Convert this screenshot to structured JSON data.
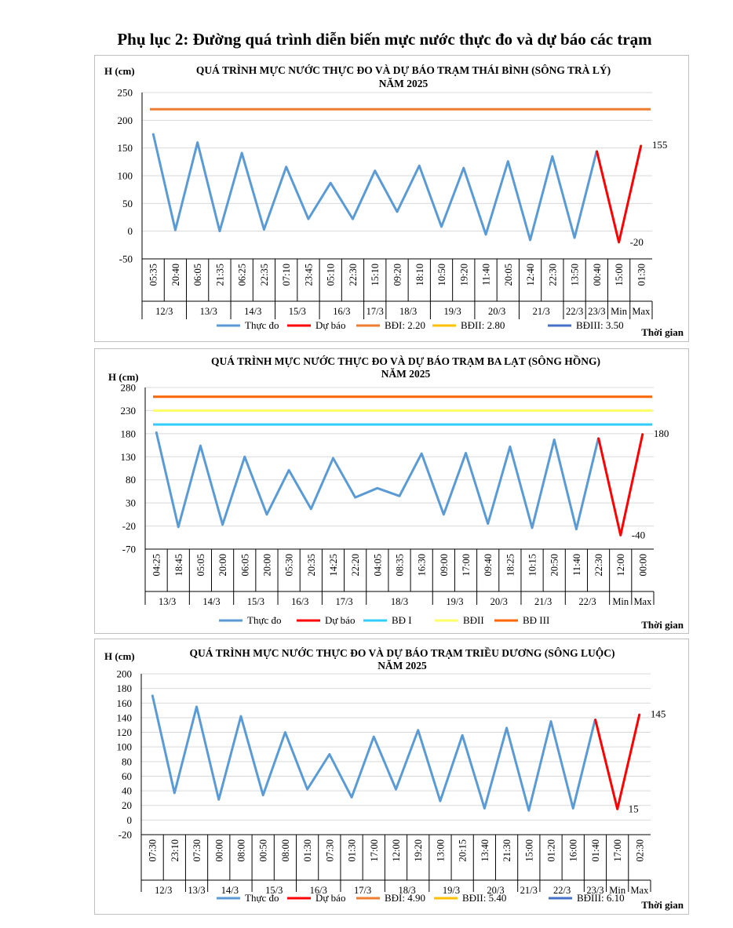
{
  "page": {
    "title": "Phụ lục 2: Đường quá trình diễn biến mực nước thực đo và dự báo các trạm"
  },
  "chart_data": [
    {
      "type": "line",
      "title": "QUÁ TRÌNH MỰC NƯỚC THỰC ĐO VÀ DỰ BÁO TRẠM THÁI BÌNH (SÔNG TRÀ LÝ)",
      "subtitle": "NĂM 2025",
      "ylabel": "H (cm)",
      "xlabel": "Thời gian",
      "ylim": [
        -50,
        250
      ],
      "yticks": [
        250,
        200,
        150,
        100,
        50,
        0,
        -50
      ],
      "categories": [
        "05:35",
        "20:40",
        "06:05",
        "21:35",
        "06:25",
        "22:35",
        "07:10",
        "23:45",
        "05:10",
        "22:30",
        "15:10",
        "09:20",
        "18:10",
        "10:50",
        "19:20",
        "11:40",
        "20:05",
        "12:40",
        "22:30",
        "13:50",
        "00:40",
        "15:00",
        "01:30"
      ],
      "date_groups": [
        {
          "label": "12/3",
          "span": 2
        },
        {
          "label": "13/3",
          "span": 2
        },
        {
          "label": "14/3",
          "span": 2
        },
        {
          "label": "15/3",
          "span": 2
        },
        {
          "label": "16/3",
          "span": 2
        },
        {
          "label": "17/3",
          "span": 1
        },
        {
          "label": "18/3",
          "span": 2
        },
        {
          "label": "19/3",
          "span": 2
        },
        {
          "label": "20/3",
          "span": 2
        },
        {
          "label": "21/3",
          "span": 2
        },
        {
          "label": "22/3",
          "span": 1
        },
        {
          "label": "23/3",
          "span": 1
        },
        {
          "label": "Min",
          "span": 1
        },
        {
          "label": "Max",
          "span": 1
        }
      ],
      "series": [
        {
          "name": "Thực đo",
          "color": "#5B9BD5",
          "values": [
            176,
            2,
            160,
            0,
            141,
            3,
            116,
            22,
            87,
            22,
            109,
            35,
            118,
            8,
            114,
            -6,
            126,
            -16,
            135,
            -12,
            145,
            null,
            null
          ]
        },
        {
          "name": "Dự báo",
          "color": "#FF0000",
          "values": [
            null,
            null,
            null,
            null,
            null,
            null,
            null,
            null,
            null,
            null,
            null,
            null,
            null,
            null,
            null,
            null,
            null,
            null,
            null,
            null,
            145,
            -20,
            155
          ]
        },
        {
          "name": "BĐI: 2.20",
          "color": "#ED7D31",
          "level": 220
        },
        {
          "name": "BĐII: 2.80",
          "color": "#FFC000",
          "level": null
        },
        {
          "name": "BĐIII: 3.50",
          "color": "#4472C4",
          "level": null
        }
      ],
      "annotations": [
        {
          "label": "155",
          "index": 22,
          "value": 155
        },
        {
          "label": "-20",
          "index": 21,
          "value": -20
        }
      ]
    },
    {
      "type": "line",
      "title": "QUÁ TRÌNH MỰC NƯỚC THỰC ĐO VÀ DỰ BÁO TRẠM BA LẠT (SÔNG HỒNG)",
      "subtitle": "NĂM 2025",
      "ylabel": "H (cm)",
      "xlabel": "Thời gian",
      "ylim": [
        -70,
        280
      ],
      "yticks": [
        280,
        230,
        180,
        130,
        80,
        30,
        -20,
        -70
      ],
      "categories": [
        "04:25",
        "18:45",
        "05:05",
        "20:00",
        "06:05",
        "20:00",
        "05:30",
        "20:35",
        "14:25",
        "22:20",
        "04:05",
        "08:35",
        "16:30",
        "09:00",
        "17:00",
        "09:40",
        "18:25",
        "10:15",
        "20:50",
        "11:40",
        "22:30",
        "12:00",
        "00:00"
      ],
      "date_groups": [
        {
          "label": "13/3",
          "span": 2
        },
        {
          "label": "14/3",
          "span": 2
        },
        {
          "label": "15/3",
          "span": 2
        },
        {
          "label": "16/3",
          "span": 2
        },
        {
          "label": "17/3",
          "span": 2
        },
        {
          "label": "18/3",
          "span": 3
        },
        {
          "label": "19/3",
          "span": 2
        },
        {
          "label": "20/3",
          "span": 2
        },
        {
          "label": "21/3",
          "span": 2
        },
        {
          "label": "22/3",
          "span": 2
        },
        {
          "label": "Min",
          "span": 1
        },
        {
          "label": "Max",
          "span": 1
        }
      ],
      "series": [
        {
          "name": "Thực đo",
          "color": "#5B9BD5",
          "values": [
            184,
            -22,
            154,
            -17,
            130,
            5,
            101,
            17,
            127,
            42,
            62,
            45,
            137,
            5,
            138,
            -15,
            152,
            -24,
            167,
            -27,
            171,
            null,
            null
          ]
        },
        {
          "name": "Dự báo",
          "color": "#FF0000",
          "values": [
            null,
            null,
            null,
            null,
            null,
            null,
            null,
            null,
            null,
            null,
            null,
            null,
            null,
            null,
            null,
            null,
            null,
            null,
            null,
            null,
            171,
            -40,
            180
          ]
        },
        {
          "name": "BĐ I",
          "color": "#33CCFF",
          "level": 200
        },
        {
          "name": "BĐII",
          "color": "#FFFF66",
          "level": 230
        },
        {
          "name": "BĐ III",
          "color": "#FF6600",
          "level": 260
        }
      ],
      "annotations": [
        {
          "label": "180",
          "index": 22,
          "value": 180
        },
        {
          "label": "-40",
          "index": 21,
          "value": -40
        }
      ]
    },
    {
      "type": "line",
      "title": "QUÁ TRÌNH MỰC NƯỚC THỰC ĐO VÀ DỰ BÁO TRẠM TRIỀU DƯƠNG  (SÔNG LUỘC)",
      "subtitle": "NĂM 2025",
      "ylabel": "H (cm)",
      "xlabel": "Thời gian",
      "ylim": [
        -20,
        200
      ],
      "yticks": [
        200,
        180,
        160,
        140,
        120,
        100,
        80,
        60,
        40,
        20,
        0,
        -20
      ],
      "categories": [
        "07:30",
        "23:10",
        "07:30",
        "00:00",
        "08:00",
        "00:50",
        "08:00",
        "01:30",
        "07:30",
        "01:30",
        "17:00",
        "12:00",
        "19:20",
        "13:00",
        "20:15",
        "13:40",
        "21:30",
        "15:00",
        "01:20",
        "16:00",
        "01:40",
        "17:00",
        "02:30"
      ],
      "date_groups": [
        {
          "label": "12/3",
          "span": 2
        },
        {
          "label": "13/3",
          "span": 1
        },
        {
          "label": "14/3",
          "span": 2
        },
        {
          "label": "15/3",
          "span": 2
        },
        {
          "label": "16/3",
          "span": 2
        },
        {
          "label": "17/3",
          "span": 2
        },
        {
          "label": "18/3",
          "span": 2
        },
        {
          "label": "19/3",
          "span": 2
        },
        {
          "label": "20/3",
          "span": 2
        },
        {
          "label": "21/3",
          "span": 1
        },
        {
          "label": "22/3",
          "span": 2
        },
        {
          "label": "23/3",
          "span": 1
        },
        {
          "label": "Min",
          "span": 1
        },
        {
          "label": "Max",
          "span": 1
        }
      ],
      "series": [
        {
          "name": "Thực đo",
          "color": "#5B9BD5",
          "values": [
            171,
            37,
            155,
            28,
            142,
            34,
            120,
            42,
            90,
            31,
            114,
            42,
            123,
            26,
            116,
            16,
            126,
            13,
            135,
            16,
            138,
            null,
            null
          ]
        },
        {
          "name": "Dự báo",
          "color": "#FF0000",
          "values": [
            null,
            null,
            null,
            null,
            null,
            null,
            null,
            null,
            null,
            null,
            null,
            null,
            null,
            null,
            null,
            null,
            null,
            null,
            null,
            null,
            138,
            15,
            145
          ]
        },
        {
          "name": "BĐI: 4.90",
          "color": "#ED7D31",
          "level": null
        },
        {
          "name": "BĐII: 5.40",
          "color": "#FFC000",
          "level": null
        },
        {
          "name": "BĐIII: 6.10",
          "color": "#4472C4",
          "level": null
        }
      ],
      "annotations": [
        {
          "label": "145",
          "index": 22,
          "value": 145
        },
        {
          "label": "15",
          "index": 21,
          "value": 15
        }
      ]
    }
  ]
}
